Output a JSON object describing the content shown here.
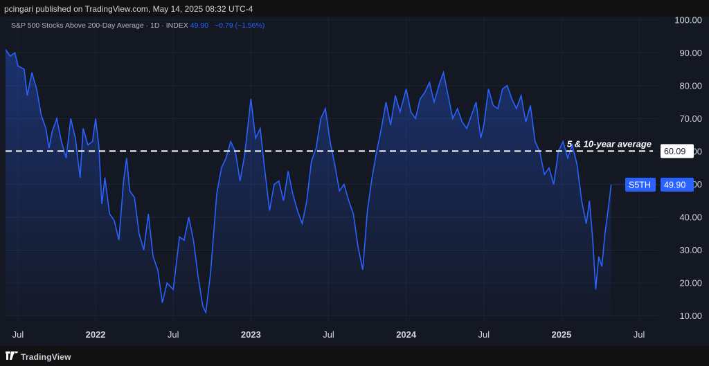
{
  "header": {
    "published": "pcingari published on TradingView.com, May 14, 2025 08:32 UTC-4"
  },
  "legend": {
    "title": "S&P 500 Stocks Above 200-Day Average · 1D · INDEX",
    "value": "49.90",
    "change": "−0.79 (−1.56%)"
  },
  "footer": {
    "brand": "TradingView"
  },
  "colors": {
    "line": "#2962ff",
    "background": "#141823",
    "reference_line": "#ffffff"
  },
  "chart_data": {
    "type": "line",
    "title": "S&P 500 Stocks Above 200-Day Average",
    "ylim": [
      8,
      101
    ],
    "xlim": [
      2021.42,
      2025.62
    ],
    "y_ticks": [
      "100.00",
      "90.00",
      "80.00",
      "70.00",
      "60.00",
      "50.00",
      "40.00",
      "30.00",
      "20.00",
      "10.00"
    ],
    "x_ticks": [
      {
        "x": 2021.5,
        "label": "Jul",
        "bold": false
      },
      {
        "x": 2022.0,
        "label": "2022",
        "bold": true
      },
      {
        "x": 2022.5,
        "label": "Jul",
        "bold": false
      },
      {
        "x": 2023.0,
        "label": "2023",
        "bold": true
      },
      {
        "x": 2023.5,
        "label": "Jul",
        "bold": false
      },
      {
        "x": 2024.0,
        "label": "2024",
        "bold": true
      },
      {
        "x": 2024.5,
        "label": "Jul",
        "bold": false
      },
      {
        "x": 2025.0,
        "label": "2025",
        "bold": true
      },
      {
        "x": 2025.5,
        "label": "Jul",
        "bold": false
      }
    ],
    "reference_line": {
      "value": 60.09,
      "label": "5 & 10-year average",
      "badge": "60.09"
    },
    "last_value": {
      "symbol": "S5TH",
      "value": 49.9,
      "badge": "49.90"
    },
    "series": [
      {
        "points": [
          [
            2021.42,
            91
          ],
          [
            2021.45,
            89
          ],
          [
            2021.48,
            90
          ],
          [
            2021.5,
            86
          ],
          [
            2021.54,
            85
          ],
          [
            2021.56,
            77
          ],
          [
            2021.59,
            84
          ],
          [
            2021.62,
            79
          ],
          [
            2021.65,
            71
          ],
          [
            2021.68,
            67
          ],
          [
            2021.7,
            61
          ],
          [
            2021.72,
            66
          ],
          [
            2021.75,
            70
          ],
          [
            2021.78,
            63
          ],
          [
            2021.81,
            58
          ],
          [
            2021.84,
            70
          ],
          [
            2021.87,
            64
          ],
          [
            2021.9,
            52
          ],
          [
            2021.92,
            67
          ],
          [
            2021.95,
            62
          ],
          [
            2021.98,
            63
          ],
          [
            2022.0,
            70
          ],
          [
            2022.02,
            62
          ],
          [
            2022.04,
            44
          ],
          [
            2022.06,
            52
          ],
          [
            2022.09,
            41
          ],
          [
            2022.12,
            39
          ],
          [
            2022.15,
            33
          ],
          [
            2022.18,
            51
          ],
          [
            2022.2,
            58
          ],
          [
            2022.22,
            48
          ],
          [
            2022.25,
            46
          ],
          [
            2022.28,
            35
          ],
          [
            2022.31,
            30
          ],
          [
            2022.34,
            41
          ],
          [
            2022.37,
            28
          ],
          [
            2022.4,
            24
          ],
          [
            2022.43,
            14
          ],
          [
            2022.46,
            20
          ],
          [
            2022.5,
            18
          ],
          [
            2022.54,
            34
          ],
          [
            2022.57,
            33
          ],
          [
            2022.6,
            40
          ],
          [
            2022.63,
            33
          ],
          [
            2022.66,
            22
          ],
          [
            2022.69,
            13
          ],
          [
            2022.71,
            11
          ],
          [
            2022.74,
            23
          ],
          [
            2022.78,
            47
          ],
          [
            2022.81,
            55
          ],
          [
            2022.84,
            58
          ],
          [
            2022.87,
            63
          ],
          [
            2022.9,
            60
          ],
          [
            2022.93,
            51
          ],
          [
            2022.96,
            59
          ],
          [
            2023.0,
            76
          ],
          [
            2023.03,
            64
          ],
          [
            2023.06,
            67
          ],
          [
            2023.09,
            54
          ],
          [
            2023.12,
            42
          ],
          [
            2023.15,
            50
          ],
          [
            2023.18,
            51
          ],
          [
            2023.21,
            45
          ],
          [
            2023.24,
            54
          ],
          [
            2023.27,
            47
          ],
          [
            2023.3,
            42
          ],
          [
            2023.33,
            38
          ],
          [
            2023.36,
            45
          ],
          [
            2023.39,
            57
          ],
          [
            2023.42,
            61
          ],
          [
            2023.45,
            70
          ],
          [
            2023.48,
            73
          ],
          [
            2023.51,
            63
          ],
          [
            2023.54,
            56
          ],
          [
            2023.57,
            48
          ],
          [
            2023.6,
            50
          ],
          [
            2023.63,
            45
          ],
          [
            2023.66,
            41
          ],
          [
            2023.69,
            31
          ],
          [
            2023.72,
            24
          ],
          [
            2023.75,
            42
          ],
          [
            2023.78,
            52
          ],
          [
            2023.81,
            60
          ],
          [
            2023.84,
            67
          ],
          [
            2023.87,
            75
          ],
          [
            2023.9,
            68
          ],
          [
            2023.93,
            77
          ],
          [
            2023.96,
            72
          ],
          [
            2024.0,
            79
          ],
          [
            2024.03,
            72
          ],
          [
            2024.06,
            70
          ],
          [
            2024.09,
            76
          ],
          [
            2024.12,
            78
          ],
          [
            2024.15,
            81
          ],
          [
            2024.18,
            75
          ],
          [
            2024.21,
            80
          ],
          [
            2024.24,
            84
          ],
          [
            2024.27,
            77
          ],
          [
            2024.3,
            70
          ],
          [
            2024.33,
            73
          ],
          [
            2024.36,
            69
          ],
          [
            2024.39,
            67
          ],
          [
            2024.42,
            71
          ],
          [
            2024.45,
            75
          ],
          [
            2024.48,
            64
          ],
          [
            2024.5,
            68
          ],
          [
            2024.53,
            79
          ],
          [
            2024.56,
            74
          ],
          [
            2024.59,
            73
          ],
          [
            2024.62,
            79
          ],
          [
            2024.65,
            80
          ],
          [
            2024.68,
            76
          ],
          [
            2024.71,
            73
          ],
          [
            2024.74,
            77
          ],
          [
            2024.77,
            69
          ],
          [
            2024.8,
            74
          ],
          [
            2024.83,
            63
          ],
          [
            2024.86,
            60
          ],
          [
            2024.89,
            53
          ],
          [
            2024.92,
            55
          ],
          [
            2024.95,
            50
          ],
          [
            2024.98,
            60
          ],
          [
            2025.01,
            63
          ],
          [
            2025.04,
            58
          ],
          [
            2025.07,
            62
          ],
          [
            2025.1,
            56
          ],
          [
            2025.13,
            45
          ],
          [
            2025.16,
            38
          ],
          [
            2025.18,
            45
          ],
          [
            2025.2,
            34
          ],
          [
            2025.22,
            18
          ],
          [
            2025.24,
            28
          ],
          [
            2025.26,
            25
          ],
          [
            2025.28,
            35
          ],
          [
            2025.3,
            42
          ],
          [
            2025.32,
            49.9
          ]
        ]
      }
    ]
  }
}
